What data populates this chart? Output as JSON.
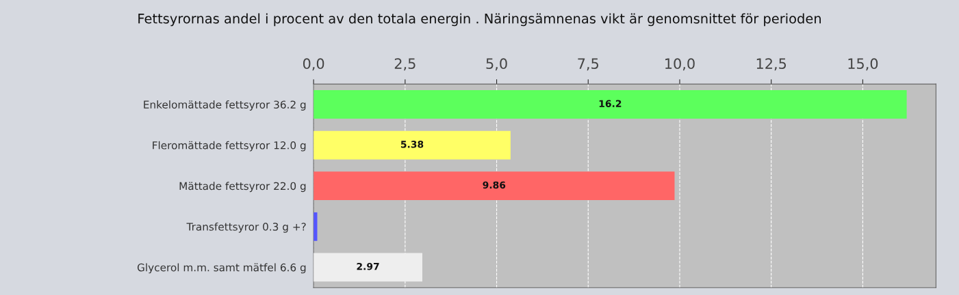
{
  "chart_data": {
    "type": "bar",
    "orientation": "horizontal",
    "title": "Fettsyrornas andel i procent av den totala energin . Näringsämnenas vikt är genomsnittet för perioden",
    "categories": [
      "Enkelomättade fettsyror 36.2 g",
      "Fleromättade fettsyror 12.0 g",
      "Mättade fettsyror 22.0 g",
      "Transfettsyror 0.3 g +?",
      "Glycerol m.m. samt mätfel 6.6 g"
    ],
    "values": [
      16.2,
      5.38,
      9.86,
      0.1,
      2.97
    ],
    "value_labels": [
      "16.2",
      "5.38",
      "9.86",
      null,
      "2.97"
    ],
    "colors": [
      "#5cff5c",
      "#ffff66",
      "#ff6666",
      "#5555ff",
      "#eeeeee"
    ],
    "xlim": [
      0,
      17
    ],
    "xticks": [
      {
        "value": 0,
        "label": "0,0"
      },
      {
        "value": 2.5,
        "label": "2,5"
      },
      {
        "value": 5,
        "label": "5,0"
      },
      {
        "value": 7.5,
        "label": "7,5"
      },
      {
        "value": 10,
        "label": "10,0"
      },
      {
        "value": 12.5,
        "label": "12,5"
      },
      {
        "value": 15,
        "label": "15,0"
      }
    ],
    "grid": "x",
    "legend": false
  }
}
